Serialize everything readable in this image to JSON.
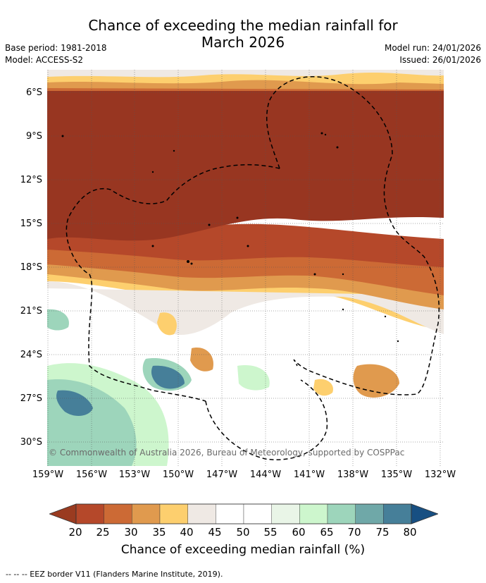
{
  "title": "Chance of exceeding the median rainfall for\nMarch 2026",
  "title_line1": "Chance of exceeding the median rainfall for",
  "title_line2": "March 2026",
  "base_period": "Base period: 1981-2018",
  "model": "Model: ACCESS-S2",
  "model_run": "Model run: 24/01/2026",
  "issued": "Issued: 26/01/2026",
  "copyright": "© Commonwealth of Australia 2026, Bureau of Meteorology, supported by COSPPac",
  "lat_labels": [
    "6°S",
    "9°S",
    "12°S",
    "15°S",
    "18°S",
    "21°S",
    "24°S",
    "27°S",
    "30°S"
  ],
  "lon_labels": [
    "159°W",
    "156°W",
    "153°W",
    "150°W",
    "147°W",
    "144°W",
    "141°W",
    "138°W",
    "135°W",
    "132°W"
  ],
  "colorbar": {
    "ticks": [
      "20",
      "25",
      "30",
      "35",
      "40",
      "45",
      "50",
      "55",
      "60",
      "65",
      "70",
      "75",
      "80"
    ],
    "colors": [
      "#9a3b20",
      "#b5482a",
      "#cc6a35",
      "#e09a4e",
      "#fdcf6e",
      "#efe9e4",
      "#ffffff",
      "#ffffff",
      "#e9f5e7",
      "#cdf6cd",
      "#9dd5bb",
      "#6fa8a8",
      "#467f99",
      "#174f82"
    ],
    "title": "Chance of exceeding median rainfall (%)"
  },
  "footnote": "--  --  -- EEZ border V11 (Flanders Marine Institute, 2019)."
}
